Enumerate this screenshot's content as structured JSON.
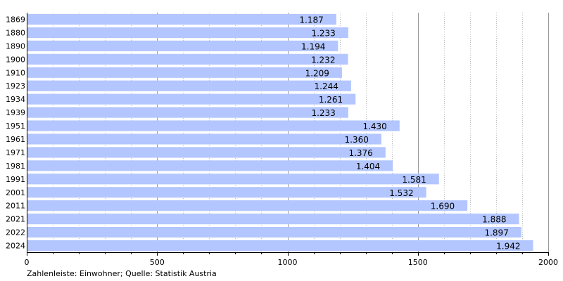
{
  "chart_data": {
    "type": "bar",
    "orientation": "horizontal",
    "categories": [
      "1869",
      "1880",
      "1890",
      "1900",
      "1910",
      "1923",
      "1934",
      "1939",
      "1951",
      "1961",
      "1971",
      "1981",
      "1991",
      "2001",
      "2011",
      "2021",
      "2022",
      "2024"
    ],
    "values": [
      1187,
      1233,
      1194,
      1232,
      1209,
      1244,
      1261,
      1233,
      1430,
      1360,
      1376,
      1404,
      1581,
      1532,
      1690,
      1888,
      1897,
      1942
    ],
    "value_labels": [
      "1.187",
      "1.233",
      "1.194",
      "1.232",
      "1.209",
      "1.244",
      "1.261",
      "1.233",
      "1.430",
      "1.360",
      "1.376",
      "1.404",
      "1.581",
      "1.532",
      "1.690",
      "1.888",
      "1.897",
      "1.942"
    ],
    "xlim": [
      0,
      2000
    ],
    "xticks": [
      0,
      500,
      1000,
      1500,
      2000
    ],
    "xtick_labels": [
      "0",
      "500",
      "1000",
      "1500",
      "2000"
    ],
    "grid": "vertical",
    "source_text": "Zahlenleiste: Einwohner; Quelle: Statistik Austria",
    "colors": {
      "bar": "#b3c6ff",
      "major_grid": "#999999",
      "minor_grid": "#bbbbbb",
      "axis": "#000000"
    }
  }
}
